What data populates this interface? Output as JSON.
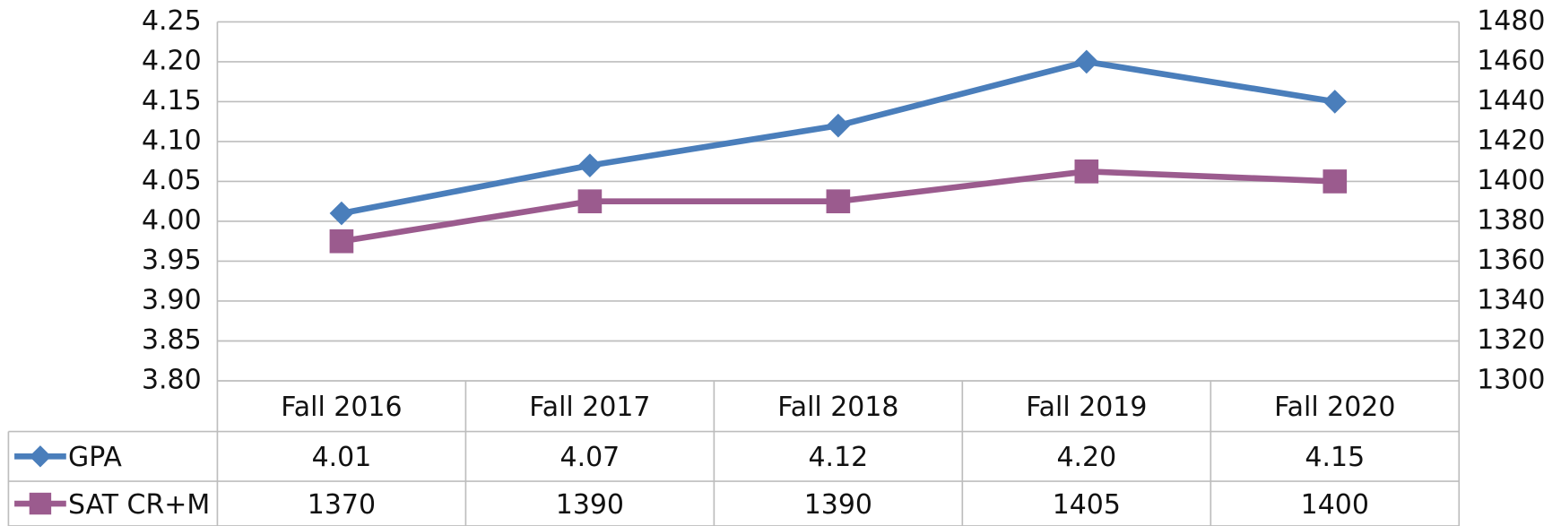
{
  "chart_data": {
    "type": "line",
    "categories": [
      "Fall 2016",
      "Fall 2017",
      "Fall 2018",
      "Fall 2019",
      "Fall 2020"
    ],
    "series": [
      {
        "name": "GPA",
        "color": "#4a7ebb",
        "marker": "diamond",
        "values": [
          4.01,
          4.07,
          4.12,
          4.2,
          4.15
        ],
        "value_labels": [
          "4.01",
          "4.07",
          "4.12",
          "4.20",
          "4.15"
        ]
      },
      {
        "name": "SAT CR+M",
        "color": "#9b5b8e",
        "marker": "square",
        "axis": "y2",
        "values": [
          1370,
          1390,
          1390,
          1405,
          1400
        ]
      }
    ],
    "ylim": [
      3.8,
      4.25
    ],
    "yticks": [
      {
        "value": 3.8,
        "label": "3.80"
      },
      {
        "value": 3.85,
        "label": "3.85"
      },
      {
        "value": 3.9,
        "label": "3.90"
      },
      {
        "value": 3.95,
        "label": "3.95"
      },
      {
        "value": 4.0,
        "label": "4.00"
      },
      {
        "value": 4.05,
        "label": "4.05"
      },
      {
        "value": 4.1,
        "label": "4.10"
      },
      {
        "value": 4.15,
        "label": "4.15"
      },
      {
        "value": 4.2,
        "label": "4.20"
      },
      {
        "value": 4.25,
        "label": "4.25"
      }
    ],
    "y2lim": [
      1300,
      1480
    ],
    "y2ticks": [
      1300,
      1320,
      1340,
      1360,
      1380,
      1400,
      1420,
      1440,
      1460,
      1480
    ],
    "grid": true,
    "data_table": true
  }
}
